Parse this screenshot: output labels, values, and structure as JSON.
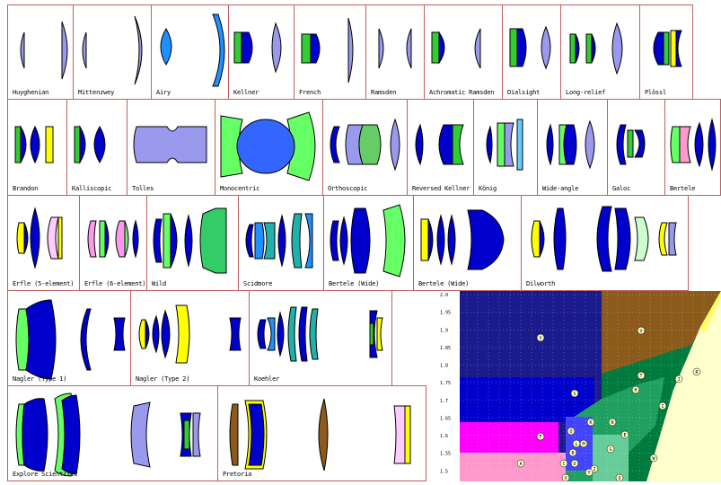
{
  "eyepieces": [
    {
      "label": "Huyghenian"
    },
    {
      "label": "Mittenzwey"
    },
    {
      "label": "Airy"
    },
    {
      "label": "Kellner"
    },
    {
      "label": "French"
    },
    {
      "label": "Ramsden"
    },
    {
      "label": "Achromatic Ramsden"
    },
    {
      "label": "Dialsight"
    },
    {
      "label": "Long-relief"
    },
    {
      "label": "Plössl"
    },
    {
      "label": "Brandon"
    },
    {
      "label": "Kalliscopic"
    },
    {
      "label": "Tolles"
    },
    {
      "label": "Monocentric"
    },
    {
      "label": "Orthoscopic"
    },
    {
      "label": "Reversed Kellner"
    },
    {
      "label": "König"
    },
    {
      "label": "Wide-angle"
    },
    {
      "label": "Galoc"
    },
    {
      "label": "Bertele"
    },
    {
      "label": "Erfle (5-element)"
    },
    {
      "label": "Erfle (6-element)"
    },
    {
      "label": "Wild"
    },
    {
      "label": "Scidmore"
    },
    {
      "label": "Bertele (Wide)"
    },
    {
      "label": "Bertele (Wide)"
    },
    {
      "label": "Dilworth"
    },
    {
      "label": "Nagler (Type 1)"
    },
    {
      "label": "Nagler (Type 2)"
    },
    {
      "label": "Koehler"
    },
    {
      "label": "Explore Scientific"
    },
    {
      "label": "Pretoria"
    }
  ],
  "glass_chart": {
    "y_ticks": [
      "2.0",
      "1.95",
      "1.9",
      "1.85",
      "1.8",
      "1.75",
      "1.7",
      "1.65",
      "1.6",
      "1.55",
      "1.5"
    ],
    "region_labels": [
      "V",
      "U",
      "S",
      "T",
      "O",
      "N",
      "K",
      "F",
      "M",
      "L",
      "B",
      "A",
      "D",
      "C",
      "Z",
      "E",
      "W",
      "I",
      "G",
      "Y",
      "X",
      "Q",
      "H",
      "J",
      "R"
    ],
    "colors": {
      "dark_blue": "#1a1a8c",
      "brown": "#8c5a1a",
      "magenta": "#ff00ff",
      "pink": "#ff99cc",
      "green": "#007a3d",
      "yellow": "#ffff66",
      "light_yellow": "#ffffcc",
      "teal": "#20b2aa"
    }
  }
}
